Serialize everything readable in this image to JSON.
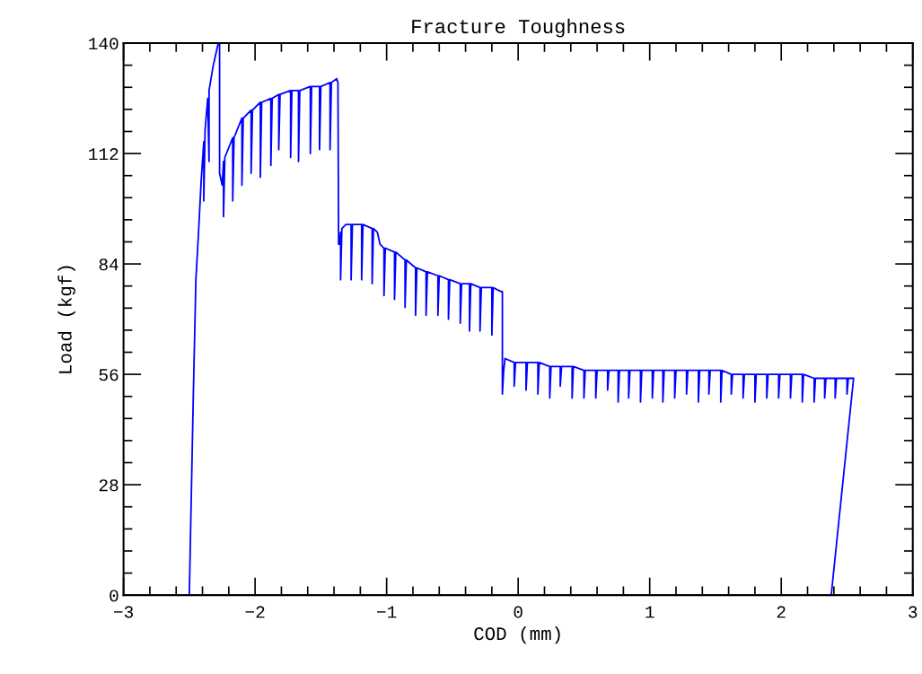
{
  "chart_data": {
    "type": "line",
    "title": "Fracture Toughness",
    "xlabel": "COD (mm)",
    "ylabel": "Load (kgf)",
    "xlim": [
      -3,
      3
    ],
    "xticks": [
      -3,
      -2,
      -1,
      0,
      1,
      2,
      3
    ],
    "ylim": [
      0,
      140
    ],
    "yticks": [
      0,
      28,
      56,
      84,
      112,
      140
    ],
    "grid": false,
    "legend": false,
    "marker": "none",
    "line_style": "solid",
    "series": [
      {
        "color": "#0000ff",
        "x": [
          -2.5,
          -2.47,
          -2.45,
          -2.43,
          -2.41,
          -2.39,
          -2.39,
          -2.38,
          -2.36,
          -2.35,
          -2.35,
          -2.32,
          -2.3,
          -2.28,
          -2.27,
          -2.27,
          -2.25,
          -2.24,
          -2.24,
          -2.23,
          -2.17,
          -2.17,
          -2.16,
          -2.1,
          -2.1,
          -2.09,
          -2.03,
          -2.03,
          -2.02,
          -1.96,
          -1.96,
          -1.95,
          -1.88,
          -1.88,
          -1.87,
          -1.82,
          -1.82,
          -1.81,
          -1.73,
          -1.73,
          -1.72,
          -1.67,
          -1.67,
          -1.66,
          -1.58,
          -1.58,
          -1.57,
          -1.51,
          -1.51,
          -1.5,
          -1.43,
          -1.43,
          -1.42,
          -1.38,
          -1.37,
          -1.365,
          -1.36,
          -1.35,
          -1.35,
          -1.34,
          -1.31,
          -1.27,
          -1.27,
          -1.26,
          -1.19,
          -1.19,
          -1.18,
          -1.11,
          -1.11,
          -1.1,
          -1.07,
          -1.05,
          -1.02,
          -1.02,
          -1.01,
          -0.94,
          -0.94,
          -0.93,
          -0.86,
          -0.86,
          -0.85,
          -0.78,
          -0.78,
          -0.77,
          -0.7,
          -0.7,
          -0.69,
          -0.61,
          -0.61,
          -0.6,
          -0.53,
          -0.53,
          -0.52,
          -0.44,
          -0.44,
          -0.43,
          -0.37,
          -0.37,
          -0.36,
          -0.29,
          -0.29,
          -0.28,
          -0.2,
          -0.2,
          -0.19,
          -0.13,
          -0.12,
          -0.12,
          -0.11,
          -0.1,
          -0.03,
          -0.03,
          -0.02,
          0.06,
          0.06,
          0.07,
          0.15,
          0.15,
          0.16,
          0.24,
          0.24,
          0.25,
          0.32,
          0.32,
          0.33,
          0.41,
          0.41,
          0.42,
          0.5,
          0.5,
          0.51,
          0.59,
          0.59,
          0.6,
          0.68,
          0.68,
          0.69,
          0.76,
          0.76,
          0.77,
          0.84,
          0.84,
          0.85,
          0.93,
          0.93,
          0.94,
          1.02,
          1.02,
          1.03,
          1.1,
          1.1,
          1.11,
          1.19,
          1.19,
          1.2,
          1.28,
          1.28,
          1.29,
          1.37,
          1.37,
          1.38,
          1.45,
          1.45,
          1.46,
          1.54,
          1.54,
          1.55,
          1.62,
          1.62,
          1.63,
          1.71,
          1.71,
          1.72,
          1.8,
          1.8,
          1.81,
          1.89,
          1.89,
          1.9,
          1.98,
          1.98,
          1.99,
          2.07,
          2.07,
          2.08,
          2.16,
          2.16,
          2.17,
          2.25,
          2.25,
          2.26,
          2.33,
          2.33,
          2.34,
          2.41,
          2.41,
          2.42,
          2.5,
          2.5,
          2.51,
          2.55,
          2.55,
          2.38
        ],
        "values": [
          0,
          50,
          80,
          92,
          105,
          115,
          100,
          118,
          126,
          110,
          128,
          134,
          137,
          140,
          140,
          107,
          104,
          110,
          96,
          111,
          116,
          100,
          116,
          121,
          104,
          121,
          123,
          107,
          123,
          125,
          106,
          125,
          126,
          109,
          126,
          127,
          113,
          127,
          128,
          111,
          128,
          128,
          110,
          128,
          129,
          112,
          129,
          129,
          113,
          129,
          130,
          113,
          130,
          131,
          130,
          89,
          89,
          92,
          80,
          93,
          94,
          94,
          80,
          94,
          94,
          80,
          94,
          93,
          79,
          93,
          92,
          89,
          88,
          76,
          88,
          87,
          75,
          87,
          85,
          73,
          85,
          83,
          71,
          83,
          82,
          71,
          82,
          81,
          71,
          81,
          80,
          70,
          80,
          79,
          69,
          79,
          79,
          67,
          79,
          78,
          67,
          78,
          78,
          66,
          78,
          77,
          77,
          51,
          57,
          60,
          59,
          53,
          59,
          59,
          52,
          59,
          59,
          51,
          59,
          58,
          50,
          58,
          58,
          53,
          58,
          58,
          50,
          58,
          57,
          50,
          57,
          57,
          50,
          57,
          57,
          52,
          57,
          57,
          49,
          57,
          57,
          50,
          57,
          57,
          49,
          57,
          57,
          50,
          57,
          57,
          49,
          57,
          57,
          50,
          57,
          57,
          51,
          57,
          57,
          49,
          57,
          57,
          51,
          57,
          57,
          49,
          57,
          56,
          51,
          56,
          56,
          50,
          56,
          56,
          49,
          56,
          56,
          50,
          56,
          56,
          50,
          56,
          56,
          50,
          56,
          56,
          49,
          56,
          55,
          49,
          55,
          55,
          50,
          55,
          55,
          50,
          55,
          55,
          51,
          55,
          55,
          55,
          0
        ]
      }
    ]
  }
}
